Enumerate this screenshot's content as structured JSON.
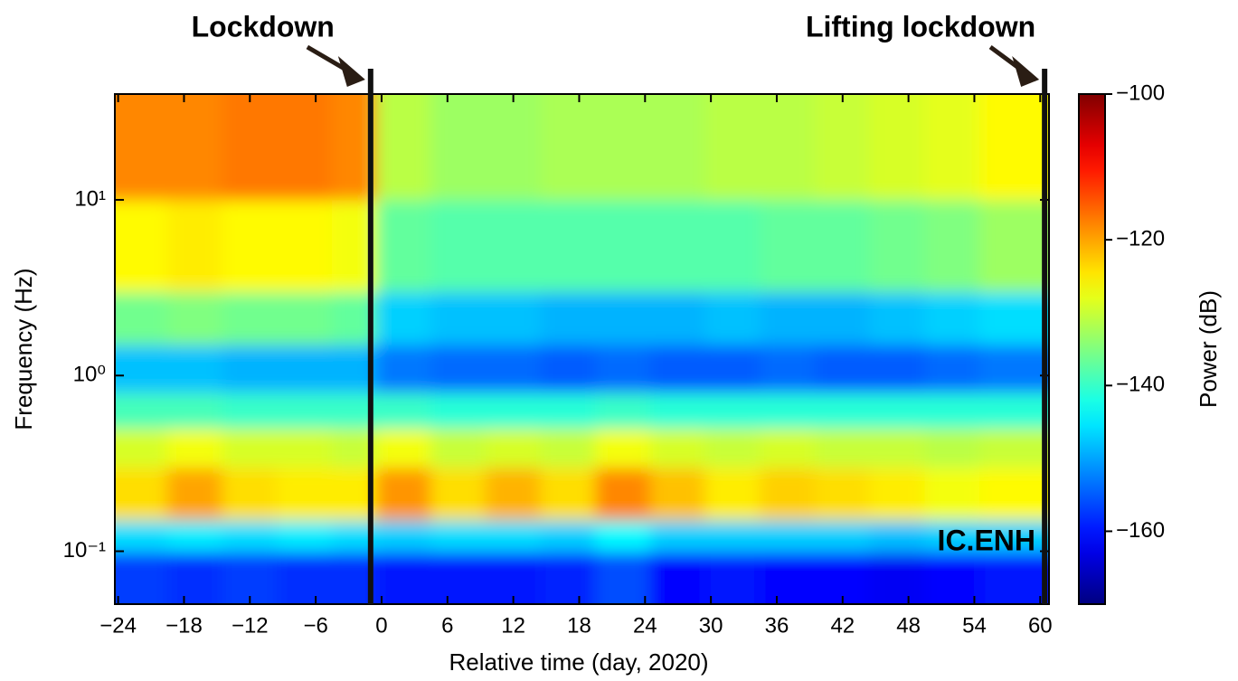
{
  "chart_data": {
    "type": "heatmap",
    "xlabel": "Relative time (day, 2020)",
    "ylabel": "Frequency (Hz)",
    "colorbar_label": "Power (dB)",
    "station": "IC.ENH",
    "events": [
      {
        "x": -1,
        "label": "Lockdown"
      },
      {
        "x": 60.4,
        "label": "Lifting lockdown"
      }
    ],
    "xlim": [
      -24.3,
      60.8
    ],
    "xticks": [
      {
        "value": -24,
        "label": "−24"
      },
      {
        "value": -18,
        "label": "−18"
      },
      {
        "value": -12,
        "label": "−12"
      },
      {
        "value": -6,
        "label": "−6"
      },
      0,
      6,
      12,
      18,
      24,
      30,
      36,
      42,
      48,
      54,
      60
    ],
    "ylim": [
      0.05,
      40
    ],
    "yscale": "log",
    "yticks": [
      {
        "value": 0.1,
        "label": "10⁻¹"
      },
      {
        "value": 1,
        "label": "10⁰"
      },
      {
        "value": 10,
        "label": "10¹"
      }
    ],
    "clim": [
      -170,
      -100
    ],
    "cticks": [
      {
        "value": -100,
        "label": "−100"
      },
      {
        "value": -120,
        "label": "−120"
      },
      {
        "value": -140,
        "label": "−140"
      },
      {
        "value": -160,
        "label": "−160"
      }
    ],
    "colormap": "jet",
    "x_edges": [
      -24.3,
      -19.5,
      -14.5,
      -9.5,
      -4.5,
      -0.5,
      4.5,
      9.5,
      14.5,
      19.5,
      24.5,
      29.5,
      34.5,
      39.5,
      44.5,
      49.5,
      54.5,
      60.8
    ],
    "y_edges": [
      0.05,
      0.1,
      0.15,
      0.3,
      0.5,
      0.8,
      1.5,
      3,
      10,
      40
    ],
    "z": [
      [
        -157,
        -158,
        -157,
        -158,
        -158,
        -160,
        -160,
        -160,
        -159,
        -156,
        -161,
        -160,
        -161,
        -161,
        -162,
        -161,
        -160
      ],
      [
        -146,
        -145,
        -146,
        -145,
        -146,
        -147,
        -146,
        -146,
        -147,
        -144,
        -147,
        -147,
        -147,
        -147,
        -148,
        -147,
        -147
      ],
      [
        -124,
        -120,
        -124,
        -125,
        -125,
        -119,
        -124,
        -121,
        -124,
        -118,
        -122,
        -125,
        -123,
        -124,
        -125,
        -127,
        -126
      ],
      [
        -129,
        -127,
        -129,
        -129,
        -130,
        -127,
        -130,
        -129,
        -130,
        -127,
        -129,
        -130,
        -129,
        -130,
        -130,
        -131,
        -130
      ],
      [
        -139,
        -139,
        -140,
        -140,
        -140,
        -140,
        -141,
        -141,
        -141,
        -140,
        -141,
        -141,
        -141,
        -141,
        -141,
        -141,
        -141
      ],
      [
        -148,
        -148,
        -149,
        -149,
        -149,
        -153,
        -154,
        -154,
        -155,
        -154,
        -155,
        -155,
        -154,
        -155,
        -155,
        -154,
        -153
      ],
      [
        -136,
        -135,
        -136,
        -136,
        -137,
        -147,
        -148,
        -148,
        -149,
        -149,
        -149,
        -148,
        -149,
        -149,
        -148,
        -147,
        -146
      ],
      [
        -126,
        -125,
        -126,
        -126,
        -127,
        -137,
        -138,
        -138,
        -138,
        -138,
        -138,
        -138,
        -137,
        -137,
        -136,
        -135,
        -133
      ],
      [
        -118,
        -118,
        -117,
        -117,
        -118,
        -131,
        -133,
        -133,
        -132,
        -132,
        -132,
        -131,
        -131,
        -130,
        -129,
        -128,
        -126
      ]
    ]
  }
}
